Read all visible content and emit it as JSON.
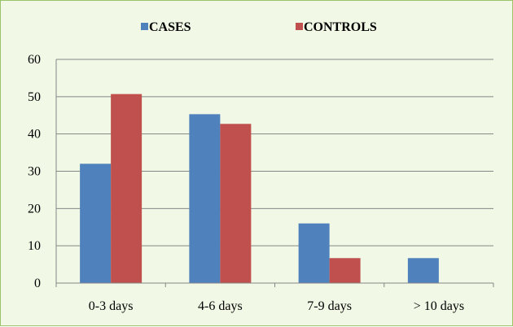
{
  "chart_data": {
    "type": "bar",
    "categories": [
      "0-3 days",
      "4-6 days",
      "7-9 days",
      "> 10 days"
    ],
    "series": [
      {
        "name": "CASES",
        "values": [
          32,
          45.3,
          16,
          6.7
        ],
        "color": "#4f81bd"
      },
      {
        "name": "CONTROLS",
        "values": [
          50.7,
          42.7,
          6.7,
          0
        ],
        "color": "#c0504d"
      }
    ],
    "title": "",
    "xlabel": "",
    "ylabel": "",
    "ylim": [
      0,
      60
    ],
    "yticks": [
      0,
      10,
      20,
      30,
      40,
      50,
      60
    ],
    "grid": true,
    "legend_position": "top"
  }
}
